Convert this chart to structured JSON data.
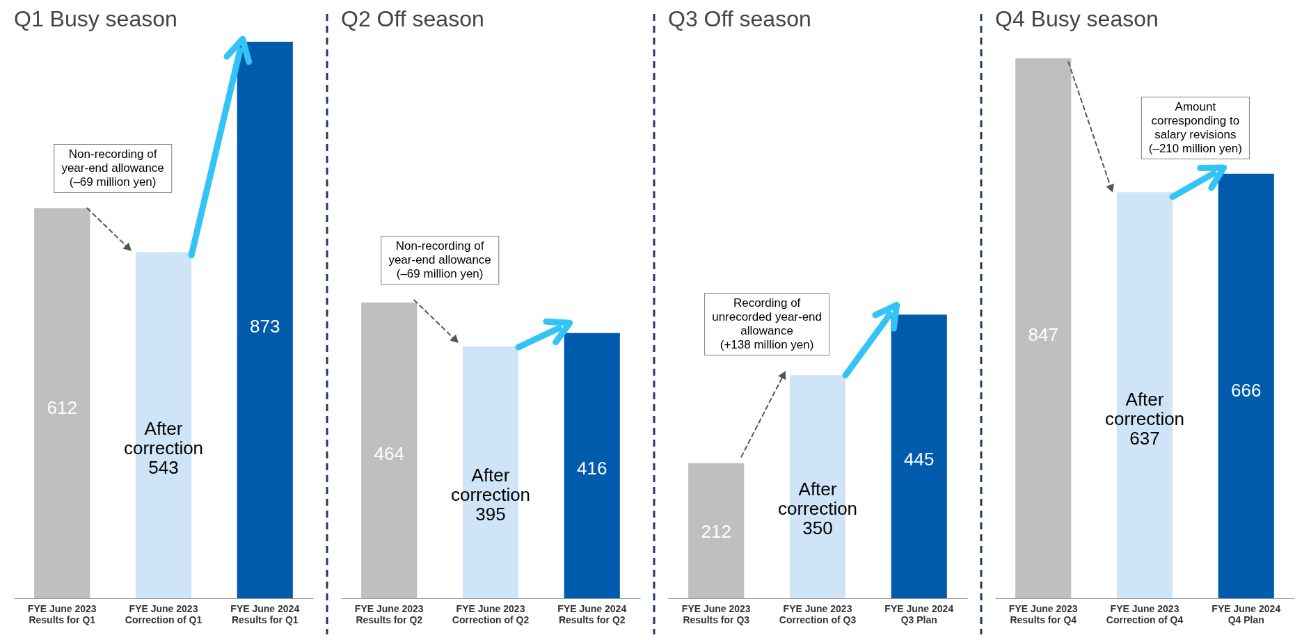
{
  "chart_data": [
    {
      "type": "bar",
      "title": "Q1   Busy season",
      "categories": [
        "FYE June 2023\nResults for Q1",
        "FYE June 2023\nCorrection of Q1",
        "FYE June 2024\nResults for Q1"
      ],
      "values": [
        612,
        543,
        873
      ],
      "colors": [
        "#bfbfbf",
        "#cfe4f7",
        "#005bac"
      ],
      "value_labels": [
        "612",
        "After\ncorrection\n543",
        "873"
      ],
      "annotations": [
        "Non-recording of\nyear-end allowance\n(–69 million yen)"
      ]
    },
    {
      "type": "bar",
      "title": "Q2   Off season",
      "categories": [
        "FYE June 2023\nResults for Q2",
        "FYE June 2023\nCorrection of Q2",
        "FYE June 2024\nResults for Q2"
      ],
      "values": [
        464,
        395,
        416
      ],
      "colors": [
        "#bfbfbf",
        "#cfe4f7",
        "#005bac"
      ],
      "value_labels": [
        "464",
        "After\ncorrection\n395",
        "416"
      ],
      "annotations": [
        "Non-recording of\nyear-end allowance\n(–69 million yen)"
      ]
    },
    {
      "type": "bar",
      "title": "Q3   Off season",
      "categories": [
        "FYE June 2023\nResults for Q3",
        "FYE June 2023\nCorrection of Q3",
        "FYE June 2024\nQ3 Plan"
      ],
      "values": [
        212,
        350,
        445
      ],
      "colors": [
        "#bfbfbf",
        "#cfe4f7",
        "#005bac"
      ],
      "value_labels": [
        "212",
        "After\ncorrection\n350",
        "445"
      ],
      "annotations": [
        "Recording of\nunrecorded year-end\nallowance\n(+138 million yen)"
      ]
    },
    {
      "type": "bar",
      "title": "Q4   Busy season",
      "categories": [
        "FYE June 2023\nResults for Q4",
        "FYE June 2023\nCorrection of Q4",
        "FYE June 2024\nQ4 Plan"
      ],
      "values": [
        847,
        637,
        666
      ],
      "colors": [
        "#bfbfbf",
        "#cfe4f7",
        "#005bac"
      ],
      "value_labels": [
        "847",
        "After\ncorrection\n637",
        "666"
      ],
      "annotations": [
        "Amount\ncorresponding to\nsalary revisions\n(–210 million yen)"
      ]
    }
  ]
}
